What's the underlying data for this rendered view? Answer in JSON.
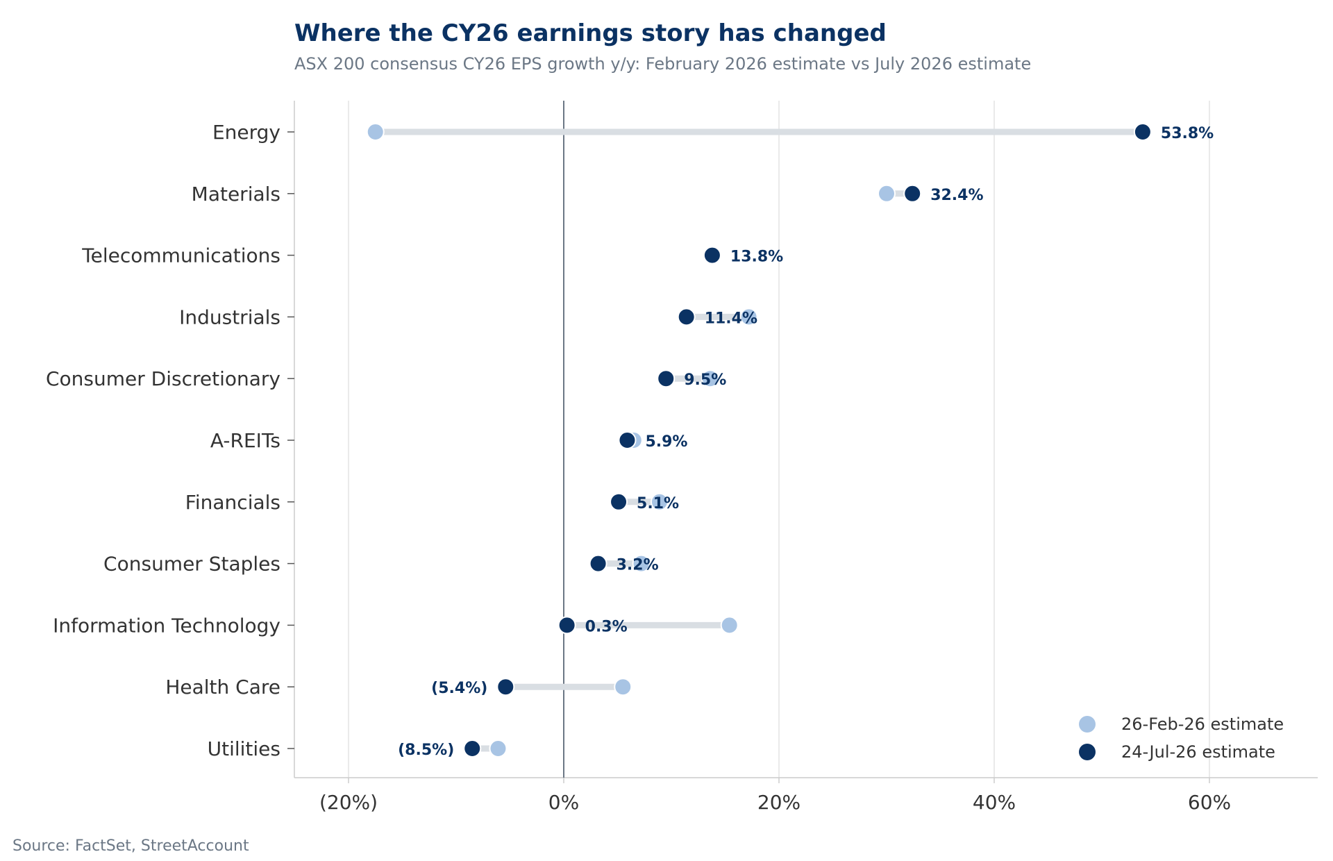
{
  "header": {
    "title": "Where the CY26 earnings story has changed",
    "subtitle": "ASX 200 consensus CY26 EPS growth y/y: February 2026 estimate vs July 2026 estimate"
  },
  "footer": {
    "source": "Source: FactSet, StreetAccount"
  },
  "colors": {
    "feb": "#a8c4e4",
    "jul": "#0b3263",
    "connector": "#d9dee3",
    "zero_line": "#6b7785",
    "grid": "#e3e3e3",
    "axis": "#cccccc"
  },
  "chart_data": {
    "type": "dumbbell",
    "title": "Where the CY26 earnings story has changed",
    "subtitle": "ASX 200 consensus CY26 EPS growth y/y: February 2026 estimate vs July 2026 estimate",
    "xlabel": "",
    "ylabel": "",
    "xlim": [
      -25,
      70
    ],
    "x_ticks": [
      -20,
      0,
      20,
      40,
      60
    ],
    "x_tick_labels": [
      "(20%)",
      "0%",
      "20%",
      "40%",
      "60%"
    ],
    "grid": "vertical",
    "legend_position": "bottom-right",
    "categories": [
      "Energy",
      "Materials",
      "Telecommunications",
      "Industrials",
      "Consumer Discretionary",
      "A-REITs",
      "Financials",
      "Consumer Staples",
      "Information Technology",
      "Health Care",
      "Utilities"
    ],
    "series": [
      {
        "name": "26-Feb-26 estimate",
        "values": [
          -17.5,
          30.0,
          13.8,
          17.2,
          13.6,
          6.5,
          8.9,
          7.2,
          15.4,
          5.5,
          -6.1
        ]
      },
      {
        "name": "24-Jul-26 estimate",
        "values": [
          53.8,
          32.4,
          13.8,
          11.4,
          9.5,
          5.9,
          5.1,
          3.2,
          0.3,
          -5.4,
          -8.5
        ]
      }
    ],
    "data_labels": [
      "53.8%",
      "32.4%",
      "13.8%",
      "11.4%",
      "9.5%",
      "5.9%",
      "5.1%",
      "3.2%",
      "0.3%",
      "(5.4%)",
      "(8.5%)"
    ]
  }
}
